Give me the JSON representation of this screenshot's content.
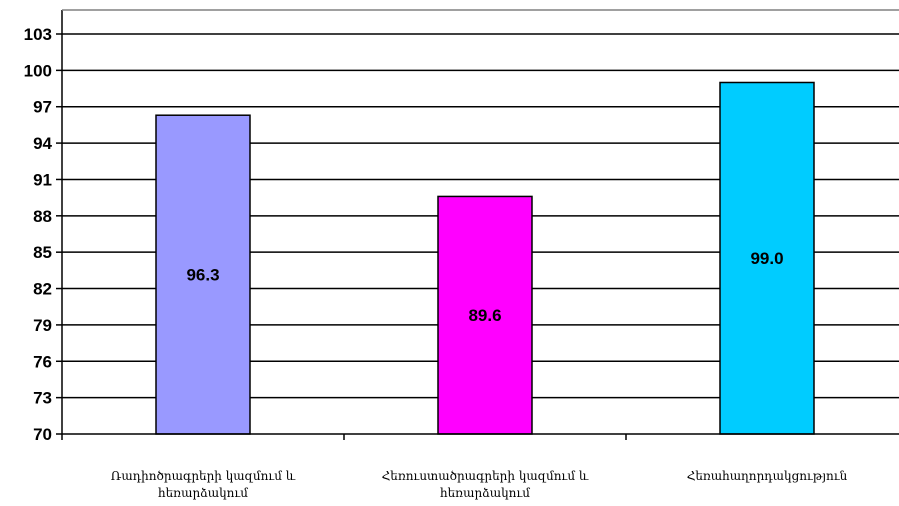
{
  "chart_data": {
    "type": "bar",
    "categories": [
      "Ռադիոծրագրերի կազմում և հեռարձակում",
      "Հեռուստածրագրերի կազմում և հեռարձակում",
      "Հեռահաղորդակցություն"
    ],
    "values": [
      96.3,
      89.6,
      99.0
    ],
    "value_labels": [
      "96.3",
      "89.6",
      "99.0"
    ],
    "colors": [
      "#9999ff",
      "#ff00ff",
      "#00ccff"
    ],
    "ylim": [
      70,
      103
    ],
    "yticks": [
      70,
      73,
      76,
      79,
      82,
      85,
      88,
      91,
      94,
      97,
      100,
      103
    ],
    "grid": true,
    "legend": "none",
    "title": "",
    "xlabel": "",
    "ylabel": ""
  }
}
